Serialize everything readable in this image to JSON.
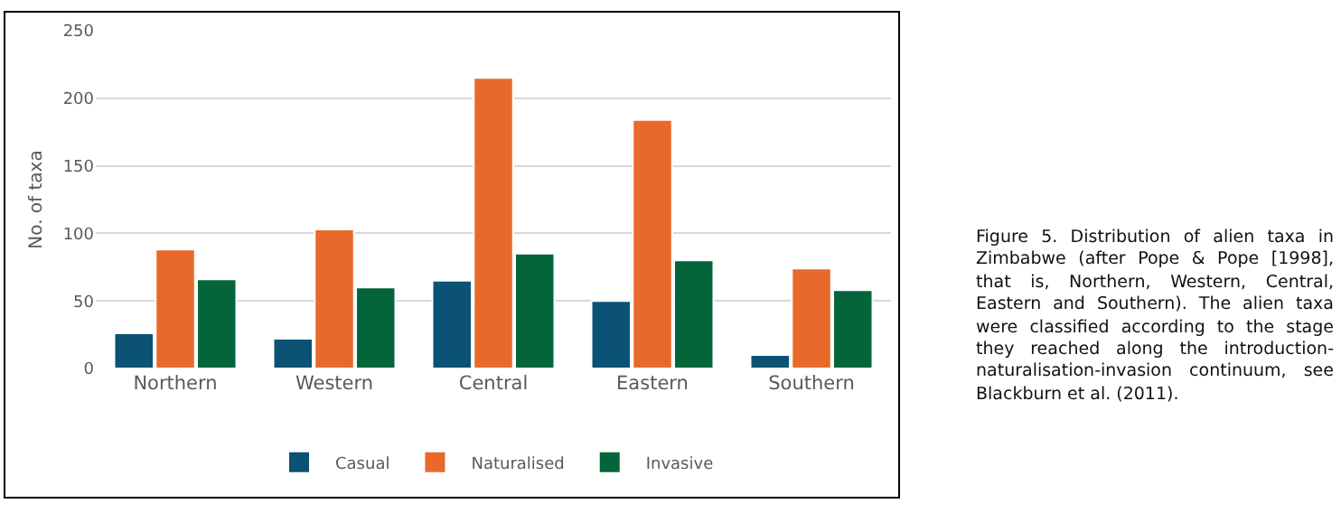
{
  "chart_data": {
    "type": "bar",
    "ylabel": "No. of taxa",
    "categories": [
      "Northern",
      "Western",
      "Central",
      "Eastern",
      "Southern"
    ],
    "series": [
      {
        "name": "Casual",
        "color": "#0b5275",
        "values": [
          26,
          22,
          65,
          50,
          10
        ]
      },
      {
        "name": "Naturalised",
        "color": "#e8692a",
        "values": [
          88,
          103,
          215,
          184,
          74
        ]
      },
      {
        "name": "Invasive",
        "color": "#04653a",
        "values": [
          66,
          60,
          85,
          80,
          58
        ]
      }
    ],
    "ylim": [
      0,
      250
    ],
    "yticks": [
      0,
      50,
      100,
      150,
      200,
      250
    ],
    "grid": "y",
    "legend": "bottom",
    "annotations": [
      "Figure 5. Distribution of alien taxa in Zimbabwe (after Pope & Pope [1998], that is, Northern, Western, Central, Eastern and Southern). The alien taxa were classified according to the stage they reached along the introduction-naturalisation-invasion continuum, see Blackburn et al. (2011)."
    ]
  }
}
